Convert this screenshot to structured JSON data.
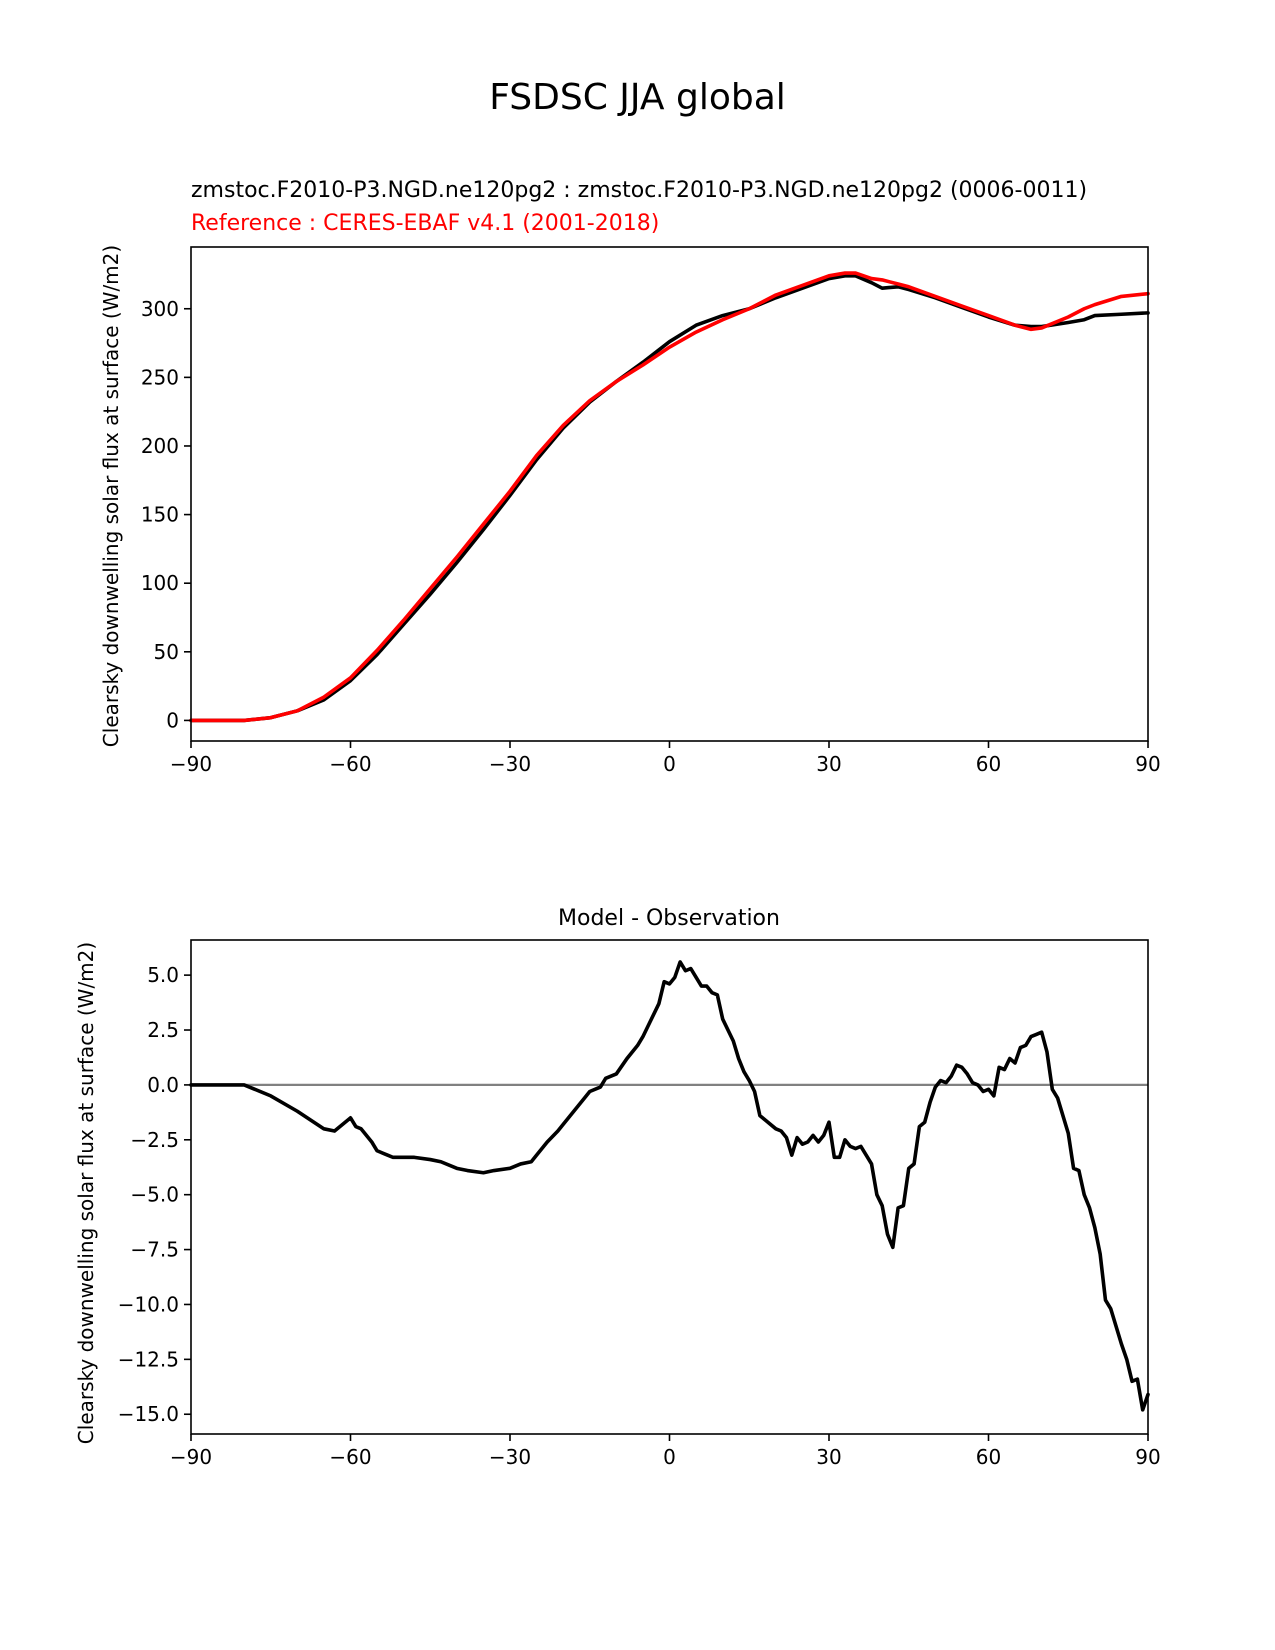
{
  "figure": {
    "title": "FSDSC JJA global"
  },
  "colors": {
    "test": "#000000",
    "reference": "#ff0000",
    "zero_line": "#808080",
    "axes": "#000000"
  },
  "chart_data": [
    {
      "type": "line",
      "subtitle_test": "zmstoc.F2010-P3.NGD.ne120pg2 : zmstoc.F2010-P3.NGD.ne120pg2 (0006-0011)",
      "subtitle_reference": "Reference : CERES-EBAF v4.1 (2001-2018)",
      "ylabel": "Clearsky downwelling solar flux at surface (W/m2)",
      "xlim": [
        -90,
        90
      ],
      "ylim": [
        -15,
        345
      ],
      "xticks": [
        -90,
        -60,
        -30,
        0,
        30,
        60,
        90
      ],
      "xtick_labels": [
        "−90",
        "−60",
        "−30",
        "0",
        "30",
        "60",
        "90"
      ],
      "yticks": [
        0,
        50,
        100,
        150,
        200,
        250,
        300
      ],
      "ytick_labels": [
        "0",
        "50",
        "100",
        "150",
        "200",
        "250",
        "300"
      ],
      "series": [
        {
          "role": "test",
          "x": [
            -90,
            -85,
            -80,
            -75,
            -70,
            -65,
            -60,
            -55,
            -50,
            -45,
            -40,
            -35,
            -30,
            -25,
            -20,
            -15,
            -10,
            -5,
            0,
            5,
            10,
            15,
            20,
            25,
            30,
            33,
            35,
            38,
            40,
            43,
            45,
            50,
            55,
            60,
            65,
            68,
            70,
            75,
            78,
            80,
            85,
            90
          ],
          "y": [
            0,
            0,
            0,
            2,
            7,
            15,
            29,
            48,
            70,
            92,
            115,
            139,
            164,
            190,
            213,
            232,
            247,
            261,
            276,
            288,
            295,
            300,
            308,
            315,
            322,
            324,
            324,
            319,
            315,
            316,
            314,
            308,
            301,
            294,
            288,
            287,
            287,
            290,
            292,
            295,
            296,
            297
          ]
        },
        {
          "role": "reference",
          "x": [
            -90,
            -85,
            -80,
            -75,
            -70,
            -65,
            -60,
            -55,
            -50,
            -45,
            -40,
            -35,
            -30,
            -25,
            -20,
            -15,
            -10,
            -5,
            0,
            5,
            10,
            15,
            20,
            25,
            30,
            33,
            35,
            38,
            40,
            43,
            45,
            50,
            55,
            60,
            65,
            68,
            70,
            75,
            78,
            80,
            85,
            90
          ],
          "y": [
            0,
            0,
            0,
            2,
            7,
            17,
            31,
            51,
            73,
            96,
            119,
            143,
            167,
            193,
            215,
            233,
            247,
            259,
            272,
            283,
            292,
            300,
            310,
            317,
            324,
            326,
            326,
            322,
            321,
            318,
            316,
            309,
            302,
            295,
            288,
            285,
            286,
            294,
            300,
            303,
            309,
            311
          ]
        }
      ]
    },
    {
      "type": "line",
      "title": "Model - Observation",
      "ylabel": "Clearsky downwelling solar flux at surface (W/m2)",
      "xlim": [
        -90,
        90
      ],
      "ylim": [
        -15.9,
        6.6
      ],
      "xticks": [
        -90,
        -60,
        -30,
        0,
        30,
        60,
        90
      ],
      "xtick_labels": [
        "−90",
        "−60",
        "−30",
        "0",
        "30",
        "60",
        "90"
      ],
      "yticks": [
        5.0,
        2.5,
        0.0,
        -2.5,
        -5.0,
        -7.5,
        -10.0,
        -12.5,
        -15.0
      ],
      "ytick_labels": [
        "5.0",
        "2.5",
        "0.0",
        "−2.5",
        "−5.0",
        "−7.5",
        "−10.0",
        "−12.5",
        "−15.0"
      ],
      "zero_line": 0,
      "series": [
        {
          "role": "difference",
          "x": [
            -90,
            -85,
            -80,
            -75,
            -70,
            -65,
            -63,
            -62,
            -60,
            -59,
            -58,
            -56,
            -55,
            -53,
            -52,
            -50,
            -48,
            -45,
            -43,
            -40,
            -38,
            -35,
            -33,
            -30,
            -28,
            -26,
            -25,
            -23,
            -21,
            -20,
            -18,
            -16,
            -15,
            -13,
            -12,
            -10,
            -8,
            -6,
            -5,
            -4,
            -2,
            -1,
            0,
            1,
            2,
            3,
            4,
            6,
            7,
            8,
            9,
            10,
            12,
            13,
            14,
            15,
            16,
            17,
            18,
            20,
            21,
            22,
            23,
            24,
            25,
            26,
            27,
            28,
            29,
            30,
            31,
            32,
            33,
            34,
            35,
            36,
            37,
            38,
            39,
            40,
            41,
            42,
            43,
            44,
            45,
            46,
            47,
            48,
            49,
            50,
            51,
            52,
            53,
            54,
            55,
            56,
            57,
            58,
            59,
            60,
            61,
            62,
            63,
            64,
            65,
            66,
            67,
            68,
            69,
            70,
            71,
            72,
            73,
            75,
            76,
            77,
            78,
            79,
            80,
            81,
            82,
            83,
            85,
            86,
            87,
            88,
            89,
            90
          ],
          "y": [
            0,
            0,
            0,
            -0.5,
            -1.2,
            -2.0,
            -2.1,
            -1.9,
            -1.5,
            -1.9,
            -2.0,
            -2.6,
            -3.0,
            -3.2,
            -3.3,
            -3.3,
            -3.3,
            -3.4,
            -3.5,
            -3.8,
            -3.9,
            -4.0,
            -3.9,
            -3.8,
            -3.6,
            -3.5,
            -3.2,
            -2.6,
            -2.1,
            -1.8,
            -1.2,
            -0.6,
            -0.3,
            -0.1,
            0.3,
            0.5,
            1.2,
            1.8,
            2.2,
            2.7,
            3.7,
            4.7,
            4.6,
            4.9,
            5.6,
            5.2,
            5.3,
            4.5,
            4.5,
            4.2,
            4.1,
            3.0,
            2.0,
            1.2,
            0.6,
            0.2,
            -0.3,
            -1.4,
            -1.6,
            -2.0,
            -2.1,
            -2.4,
            -3.2,
            -2.4,
            -2.7,
            -2.6,
            -2.3,
            -2.6,
            -2.3,
            -1.7,
            -3.3,
            -3.3,
            -2.5,
            -2.8,
            -2.9,
            -2.8,
            -3.2,
            -3.6,
            -5.0,
            -5.5,
            -6.8,
            -7.4,
            -5.6,
            -5.5,
            -3.8,
            -3.6,
            -1.9,
            -1.7,
            -0.8,
            -0.1,
            0.2,
            0.1,
            0.4,
            0.9,
            0.8,
            0.5,
            0.1,
            0.0,
            -0.3,
            -0.2,
            -0.5,
            0.8,
            0.7,
            1.2,
            1.0,
            1.7,
            1.8,
            2.2,
            2.3,
            2.4,
            1.5,
            -0.2,
            -0.6,
            -2.2,
            -3.8,
            -3.9,
            -5.0,
            -5.6,
            -6.5,
            -7.7,
            -9.8,
            -10.2,
            -11.8,
            -12.5,
            -13.5,
            -13.4,
            -14.8,
            -14.1
          ]
        }
      ]
    }
  ]
}
